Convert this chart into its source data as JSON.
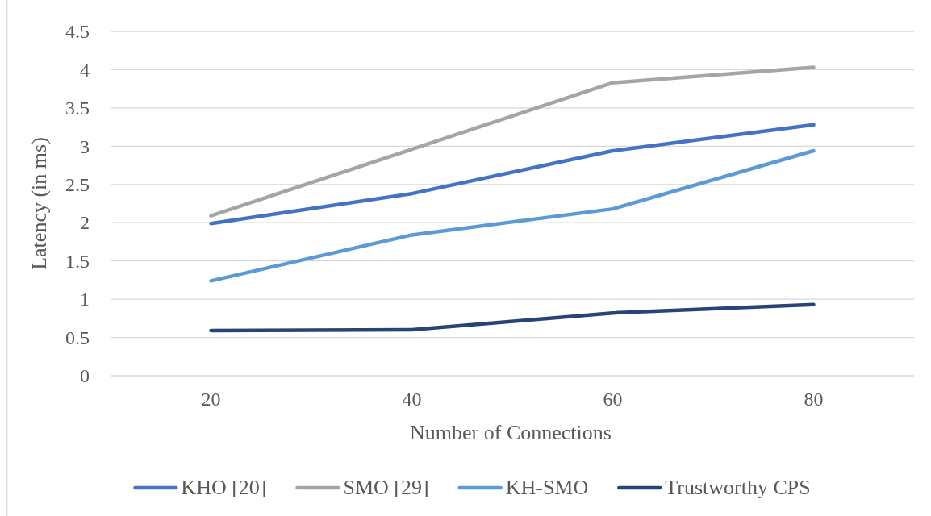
{
  "chart_data": {
    "type": "line",
    "xlabel": "Number of Connections",
    "ylabel": "Latency (in ms)",
    "categories": [
      "20",
      "40",
      "60",
      "80"
    ],
    "series": [
      {
        "name": "KHO [20]",
        "color": "#4472c4",
        "values": [
          1.99,
          2.38,
          2.94,
          3.28
        ]
      },
      {
        "name": "SMO [29]",
        "color": "#a5a5a5",
        "values": [
          2.09,
          2.96,
          3.83,
          4.03
        ]
      },
      {
        "name": "KH-SMO",
        "color": "#5b9bd5",
        "values": [
          1.24,
          1.84,
          2.18,
          2.94
        ]
      },
      {
        "name": "Trustworthy CPS",
        "color": "#264478",
        "values": [
          0.59,
          0.6,
          0.82,
          0.93
        ]
      }
    ],
    "ylim": [
      0,
      4.5
    ],
    "yticks": [
      0,
      0.5,
      1,
      1.5,
      2,
      2.5,
      3,
      3.5,
      4,
      4.5
    ],
    "grid": "y",
    "legend": "bottom",
    "marker": "none",
    "line_style": "solid"
  }
}
